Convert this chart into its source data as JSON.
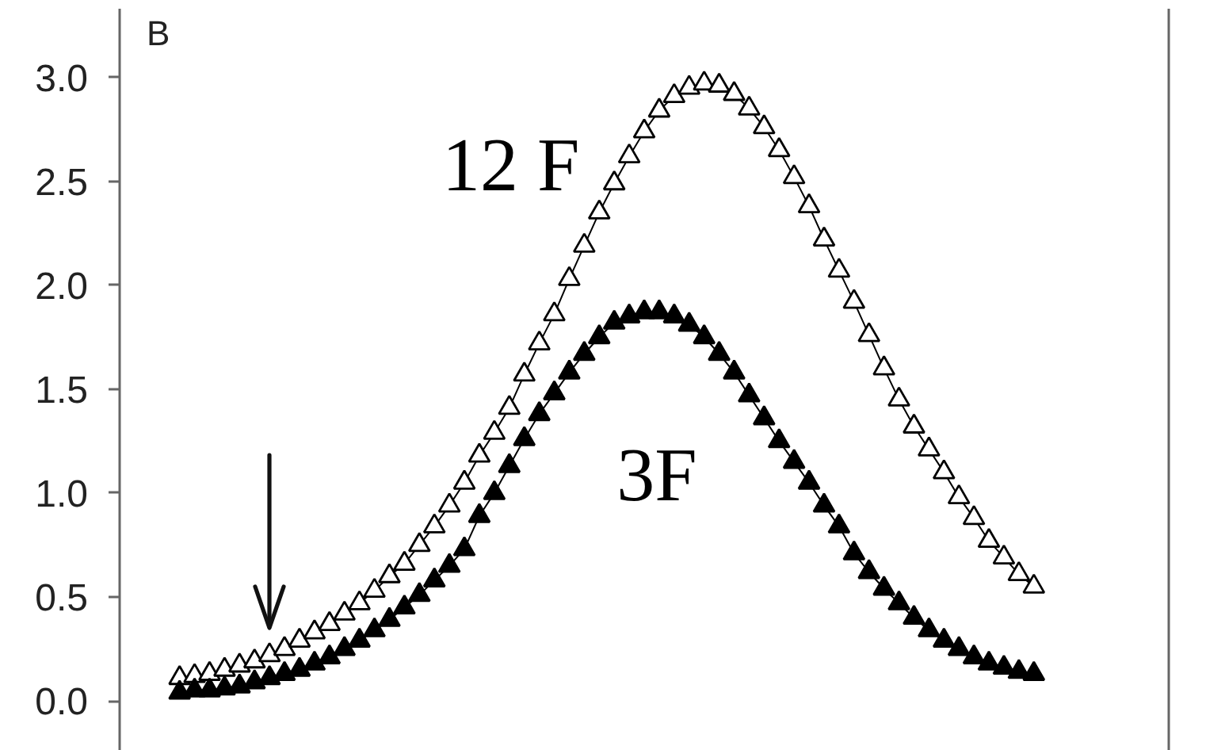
{
  "chart_data": {
    "type": "line",
    "marker": "triangle",
    "line_style": "solid",
    "grid": false,
    "legend": false,
    "tick_labels": "y",
    "categories": [
      null,
      null,
      null,
      null,
      null,
      null,
      null,
      null,
      null,
      null,
      null,
      null,
      null,
      null,
      null,
      null,
      null,
      null,
      null,
      null,
      null,
      null,
      null,
      null,
      null,
      null,
      null,
      null,
      null,
      null,
      null,
      null,
      null,
      null,
      null,
      null,
      null,
      null,
      null,
      null,
      null,
      null,
      null,
      null,
      null,
      null,
      null,
      null,
      null,
      null,
      null,
      null,
      null,
      null,
      null,
      null,
      null,
      null
    ],
    "series": [
      {
        "name": "12 F",
        "color": "#000000",
        "values": [
          0.11,
          0.12,
          0.13,
          0.15,
          0.17,
          0.19,
          0.22,
          0.25,
          0.29,
          0.33,
          0.37,
          0.42,
          0.47,
          0.53,
          0.6,
          0.66,
          0.75,
          0.84,
          0.94,
          1.05,
          1.18,
          1.29,
          1.41,
          1.57,
          1.72,
          1.86,
          2.03,
          2.19,
          2.35,
          2.49,
          2.62,
          2.74,
          2.84,
          2.91,
          2.95,
          2.97,
          2.96,
          2.92,
          2.85,
          2.76,
          2.65,
          2.52,
          2.38,
          2.22,
          2.07,
          1.92,
          1.76,
          1.6,
          1.45,
          1.32,
          1.21,
          1.1,
          0.98,
          0.88,
          0.77,
          0.69,
          0.61,
          0.55
        ]
      },
      {
        "name": "3F",
        "color": "#000000",
        "values": [
          0.04,
          0.05,
          0.05,
          0.06,
          0.07,
          0.09,
          0.11,
          0.13,
          0.15,
          0.18,
          0.21,
          0.25,
          0.29,
          0.34,
          0.39,
          0.45,
          0.51,
          0.58,
          0.65,
          0.73,
          0.89,
          1.0,
          1.13,
          1.26,
          1.38,
          1.48,
          1.58,
          1.67,
          1.75,
          1.82,
          1.85,
          1.87,
          1.87,
          1.85,
          1.81,
          1.75,
          1.67,
          1.58,
          1.47,
          1.36,
          1.25,
          1.15,
          1.05,
          0.94,
          0.84,
          0.71,
          0.62,
          0.54,
          0.47,
          0.4,
          0.34,
          0.29,
          0.25,
          0.21,
          0.18,
          0.16,
          0.14,
          0.13
        ]
      }
    ],
    "ylim": [
      -0.24,
      3.33
    ],
    "yticks": [
      {
        "value": 0,
        "label": "0.0"
      },
      {
        "value": 0.5,
        "label": "0.5"
      },
      {
        "value": 1,
        "label": "1.0"
      },
      {
        "value": 1.5,
        "label": "1.5"
      },
      {
        "value": 2,
        "label": "2.0"
      },
      {
        "value": 2.5,
        "label": "2.5"
      },
      {
        "value": 3,
        "label": "3.0"
      }
    ],
    "annotations": [
      "B"
    ]
  }
}
